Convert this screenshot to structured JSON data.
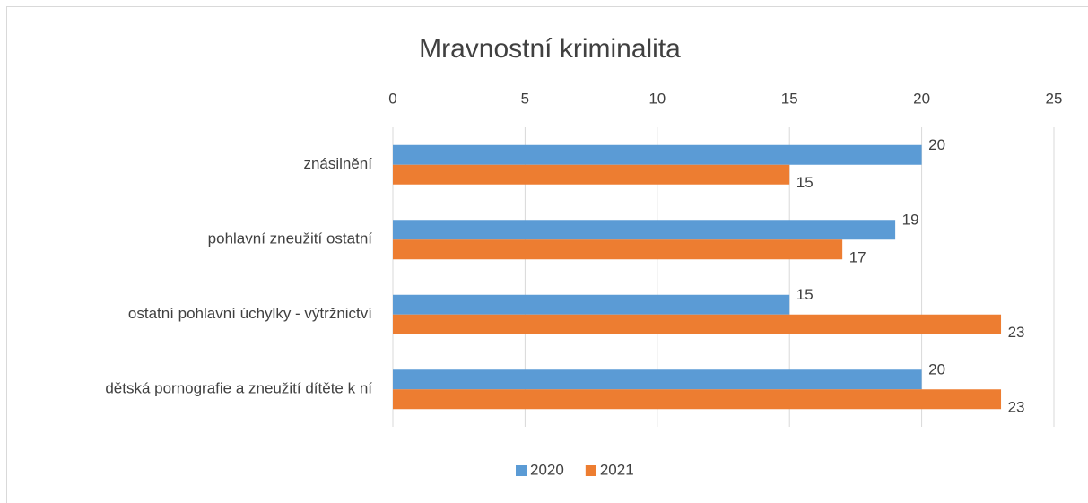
{
  "chart_data": {
    "type": "bar",
    "orientation": "horizontal",
    "title": "Mravnostní kriminalita",
    "categories": [
      "znásilnění",
      "pohlavní zneužití ostatní",
      "ostatní pohlavní úchylky - výtržnictví",
      "dětská pornografie a zneužití dítěte k ní"
    ],
    "series": [
      {
        "name": "2020",
        "color": "#5b9bd5",
        "values": [
          20,
          19,
          15,
          20
        ]
      },
      {
        "name": "2021",
        "color": "#ed7d31",
        "values": [
          15,
          17,
          23,
          23
        ]
      }
    ],
    "xlim": [
      0,
      25
    ],
    "xticks": [
      0,
      5,
      10,
      15,
      20,
      25
    ],
    "grid": true,
    "legend": "bottom"
  }
}
